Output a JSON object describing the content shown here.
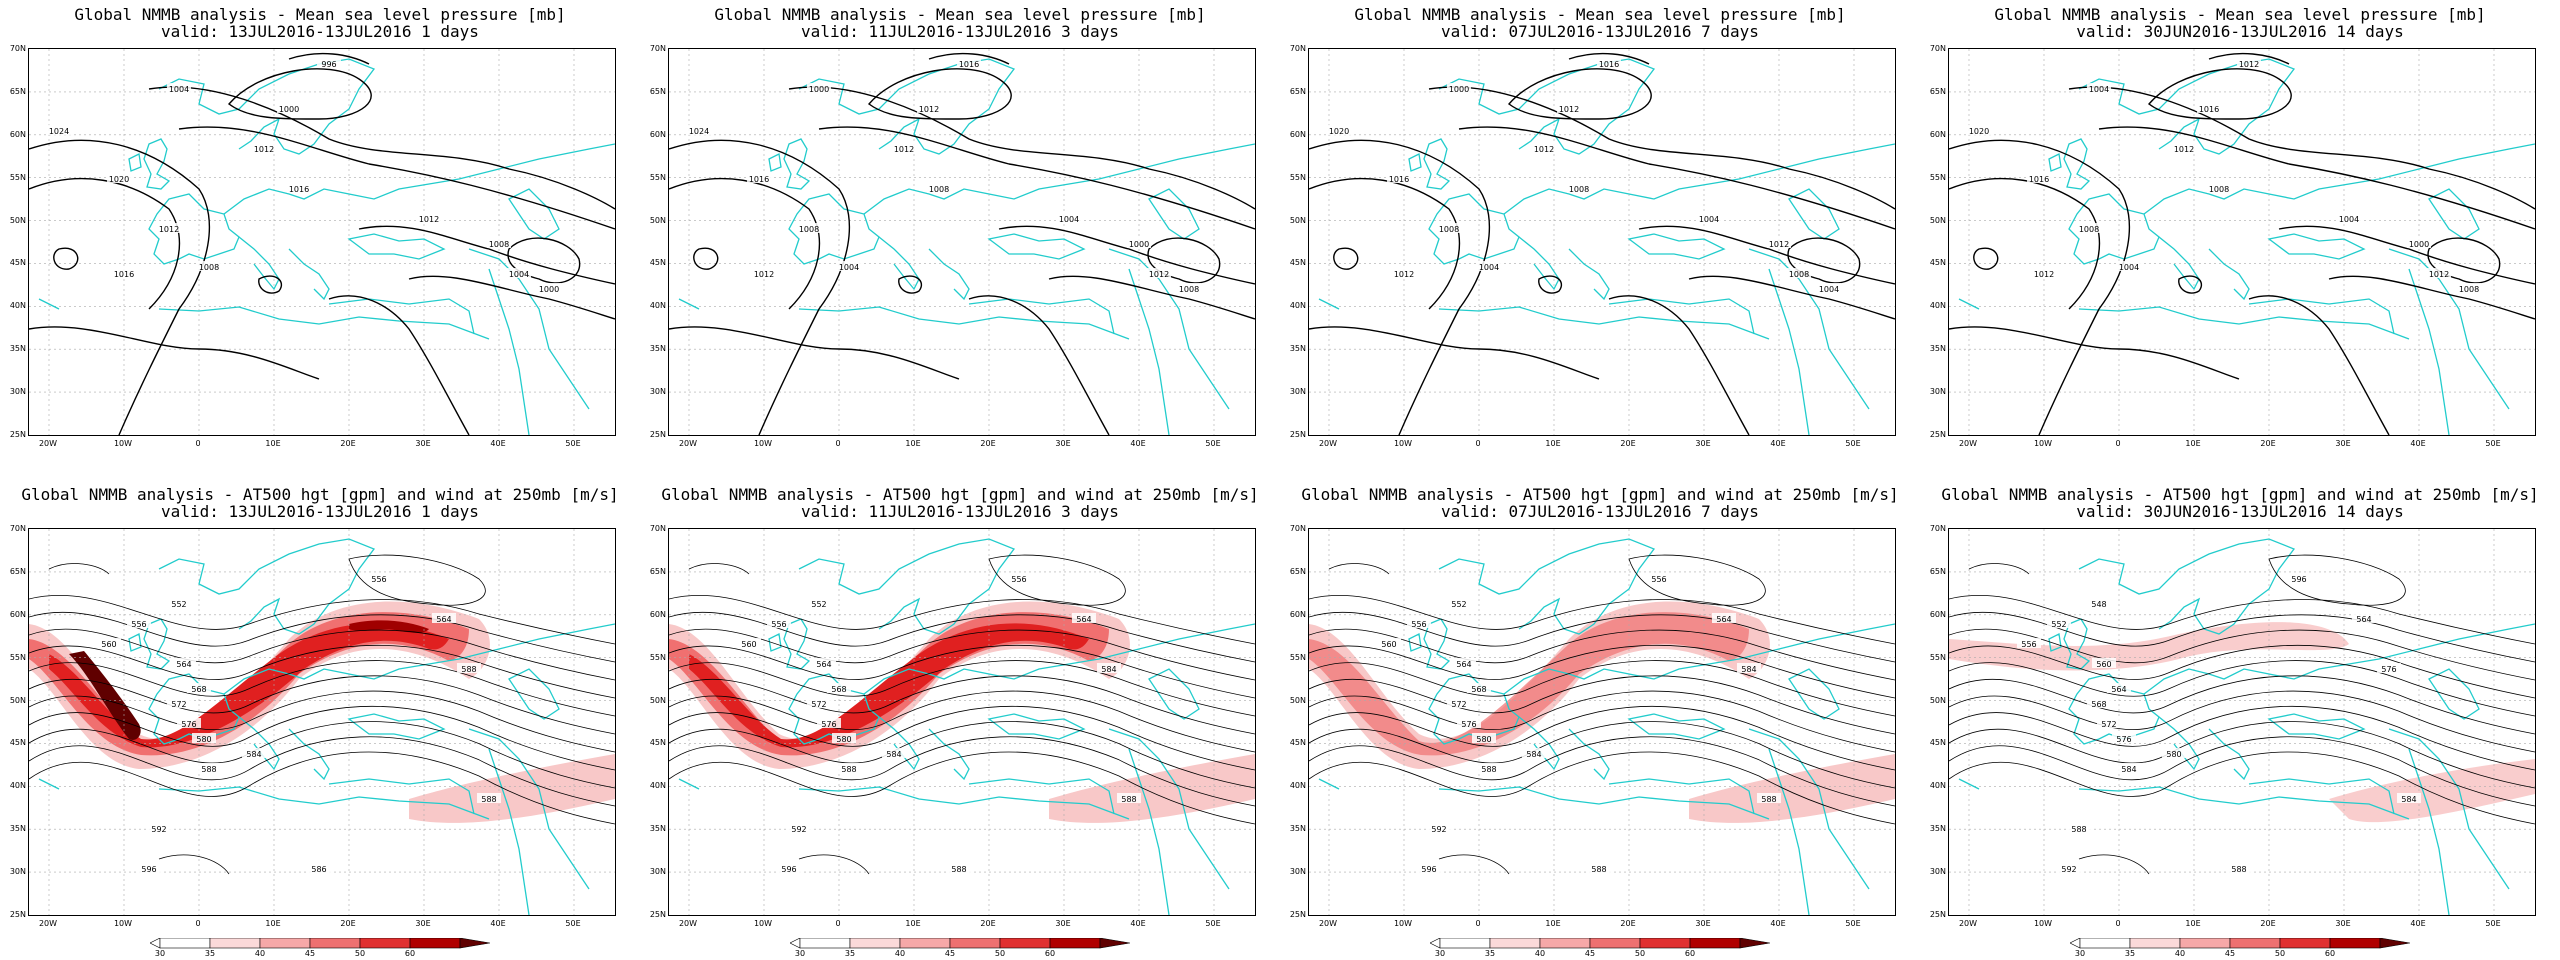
{
  "panels": [
    {
      "kind": "mslp",
      "title": "Global NMMB analysis - Mean sea level pressure [mb]",
      "valid": "valid: 13JUL2016-13JUL2016  1 days",
      "labels": [
        "1024",
        "1020",
        "1016",
        "1012",
        "1008",
        "1004",
        "1000",
        "996",
        "1012",
        "1016",
        "1012",
        "1008",
        "1004",
        "1000"
      ]
    },
    {
      "kind": "mslp",
      "title": "Global NMMB analysis - Mean sea level pressure [mb]",
      "valid": "valid: 11JUL2016-13JUL2016  3 days",
      "labels": [
        "1024",
        "1016",
        "1012",
        "1008",
        "1004",
        "1000",
        "1012",
        "1016",
        "1012",
        "1008",
        "1004",
        "1000",
        "1012",
        "1008"
      ]
    },
    {
      "kind": "mslp",
      "title": "Global NMMB analysis - Mean sea level pressure [mb]",
      "valid": "valid: 07JUL2016-13JUL2016  7 days",
      "labels": [
        "1020",
        "1016",
        "1012",
        "1008",
        "1004",
        "1000",
        "1012",
        "1016",
        "1012",
        "1008",
        "1004",
        "1012",
        "1008",
        "1004"
      ]
    },
    {
      "kind": "mslp",
      "title": "Global NMMB analysis - Mean sea level pressure [mb]",
      "valid": "valid: 30JUN2016-13JUL2016  14 days",
      "labels": [
        "1020",
        "1016",
        "1012",
        "1008",
        "1004",
        "1004",
        "1016",
        "1012",
        "1012",
        "1008",
        "1004",
        "1000",
        "1012",
        "1008"
      ]
    },
    {
      "kind": "z500",
      "title": "Global NMMB analysis - AT500 hgt [gpm] and wind at 250mb [m/s]",
      "valid": "valid: 13JUL2016-13JUL2016  1 days",
      "labels": [
        "552",
        "556",
        "560",
        "564",
        "568",
        "572",
        "576",
        "580",
        "584",
        "588",
        "592",
        "596",
        "556",
        "564",
        "588",
        "588",
        "586"
      ],
      "jet": 3
    },
    {
      "kind": "z500",
      "title": "Global NMMB analysis - AT500 hgt [gpm] and wind at 250mb [m/s]",
      "valid": "valid: 11JUL2016-13JUL2016  3 days",
      "labels": [
        "552",
        "556",
        "560",
        "564",
        "568",
        "572",
        "576",
        "580",
        "584",
        "588",
        "592",
        "596",
        "556",
        "564",
        "584",
        "588",
        "588"
      ],
      "jet": 2
    },
    {
      "kind": "z500",
      "title": "Global NMMB analysis - AT500 hgt [gpm] and wind at 250mb [m/s]",
      "valid": "valid: 07JUL2016-13JUL2016  7 days",
      "labels": [
        "552",
        "556",
        "560",
        "564",
        "568",
        "572",
        "576",
        "580",
        "584",
        "588",
        "592",
        "596",
        "556",
        "564",
        "584",
        "588",
        "588"
      ],
      "jet": 1
    },
    {
      "kind": "z500",
      "title": "Global NMMB analysis - AT500 hgt [gpm] and wind at 250mb [m/s]",
      "valid": "valid: 30JUN2016-13JUL2016  14 days",
      "labels": [
        "548",
        "552",
        "556",
        "560",
        "564",
        "568",
        "572",
        "576",
        "580",
        "584",
        "588",
        "592",
        "596",
        "564",
        "576",
        "584",
        "588"
      ],
      "jet": 0
    }
  ],
  "lat_labels": [
    "70N",
    "65N",
    "60N",
    "55N",
    "50N",
    "45N",
    "40N",
    "35N",
    "30N",
    "25N"
  ],
  "lon_labels": [
    "20W",
    "10W",
    "0",
    "10E",
    "20E",
    "30E",
    "40E",
    "50E"
  ],
  "colorbar_labels": [
    "30",
    "35",
    "40",
    "45",
    "50",
    "60"
  ],
  "colors": {
    "coast": "#22cccc",
    "contour": "#000000",
    "jet_light": "#f8c8c8",
    "jet_mid": "#f07070",
    "jet_strong": "#e02020",
    "jet_max": "#600000"
  }
}
